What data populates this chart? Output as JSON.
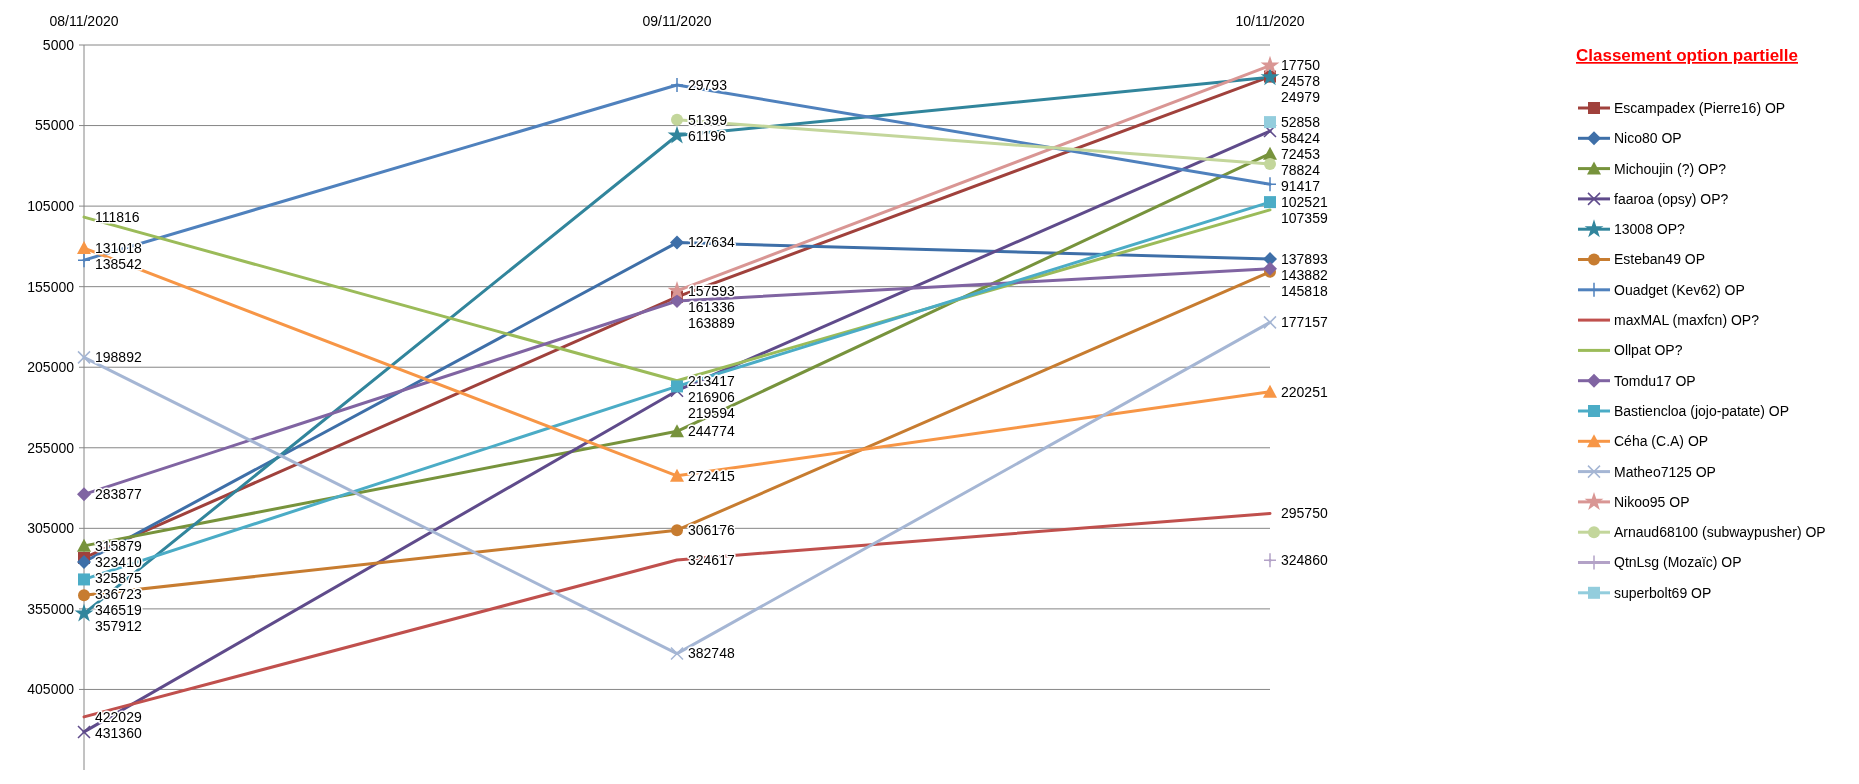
{
  "chart_data": {
    "type": "line",
    "title": "Classement option partielle",
    "categories": [
      "08/11/2020",
      "09/11/2020",
      "10/11/2020"
    ],
    "ylim": [
      455000,
      5000
    ],
    "yticks": [
      5000,
      55000,
      105000,
      155000,
      205000,
      255000,
      305000,
      355000,
      405000
    ],
    "grid": "y",
    "legend": "right",
    "data_labels": true,
    "series": [
      {
        "name": "Escampadex (Pierre16) OP",
        "color": "#a0413c",
        "marker": "square",
        "values": [
          323410,
          161336,
          24578
        ]
      },
      {
        "name": "Nico80 OP",
        "color": "#3e6fa8",
        "marker": "diamond",
        "values": [
          325875,
          127634,
          137893
        ]
      },
      {
        "name": "Michoujin (?) OP?",
        "color": "#77933c",
        "marker": "triangle",
        "values": [
          315879,
          244774,
          72453
        ]
      },
      {
        "name": "faaroa (opsy) OP?",
        "color": "#5f4b8b",
        "marker": "cross",
        "values": [
          431360,
          219594,
          58424
        ]
      },
      {
        "name": "13008 OP?",
        "color": "#31859c",
        "marker": "star",
        "values": [
          357912,
          61196,
          24979
        ]
      },
      {
        "name": "Esteban49 OP",
        "color": "#c77c30",
        "marker": "circle",
        "values": [
          346519,
          306176,
          145818
        ]
      },
      {
        "name": "Ouadget (Kev62) OP",
        "color": "#4f81bd",
        "marker": "plus",
        "values": [
          138542,
          29793,
          91417
        ]
      },
      {
        "name": "maxMAL (maxfcn) OP?",
        "color": "#c0504d",
        "marker": "none",
        "values": [
          422029,
          324617,
          295750
        ]
      },
      {
        "name": "Ollpat OP?",
        "color": "#9bbb59",
        "marker": "none",
        "values": [
          111816,
          213417,
          107359
        ]
      },
      {
        "name": "Tomdu17 OP",
        "color": "#8064a2",
        "marker": "diamond",
        "values": [
          283877,
          163889,
          143882
        ]
      },
      {
        "name": "Bastiencloa (jojo-patate) OP",
        "color": "#4bacc6",
        "marker": "square",
        "values": [
          336723,
          216906,
          102521
        ]
      },
      {
        "name": "Céha (C.A) OP",
        "color": "#f79646",
        "marker": "triangle",
        "values": [
          131018,
          272415,
          220251
        ]
      },
      {
        "name": "Matheo7125 OP",
        "color": "#a5b6d4",
        "marker": "cross",
        "values": [
          198892,
          382748,
          177157
        ]
      },
      {
        "name": "Nikoo95 OP",
        "color": "#d99694",
        "marker": "star",
        "values": [
          null,
          157593,
          17750
        ]
      },
      {
        "name": "Arnaud68100 (subwaypusher) OP",
        "color": "#c3d69b",
        "marker": "circle",
        "values": [
          null,
          51399,
          78824
        ]
      },
      {
        "name": "QtnLsg (Mozaïc) OP",
        "color": "#b3a2c7",
        "marker": "plus",
        "values": [
          null,
          null,
          324860
        ]
      },
      {
        "name": "superbolt69 OP",
        "color": "#93cddd",
        "marker": "square",
        "values": [
          null,
          null,
          52858
        ]
      }
    ]
  }
}
